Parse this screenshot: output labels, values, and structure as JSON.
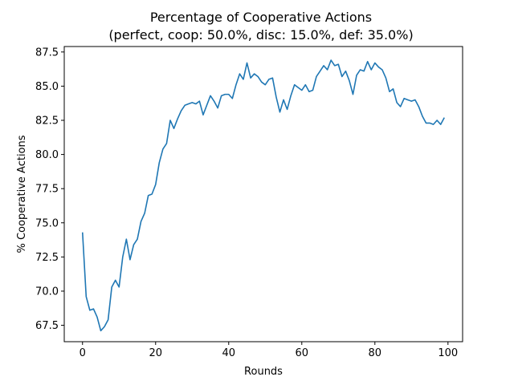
{
  "chart_data": {
    "type": "line",
    "title": "Percentage of Cooperative Actions",
    "subtitle": "(perfect, coop: 50.0%, disc: 15.0%, def: 35.0%)",
    "xlabel": "Rounds",
    "ylabel": "% Cooperative Actions",
    "xlim": [
      -5,
      104
    ],
    "ylim": [
      66.3,
      87.9
    ],
    "xticks": [
      0,
      20,
      40,
      60,
      80,
      100
    ],
    "yticks": [
      67.5,
      70.0,
      72.5,
      75.0,
      77.5,
      80.0,
      82.5,
      85.0,
      87.5
    ],
    "grid": false,
    "series": [
      {
        "color": "#1f77b4",
        "x": [
          0,
          1,
          2,
          3,
          4,
          5,
          6,
          7,
          8,
          9,
          10,
          11,
          12,
          13,
          14,
          15,
          16,
          17,
          18,
          19,
          20,
          21,
          22,
          23,
          24,
          25,
          26,
          27,
          28,
          29,
          30,
          31,
          32,
          33,
          34,
          35,
          36,
          37,
          38,
          39,
          40,
          41,
          42,
          43,
          44,
          45,
          46,
          47,
          48,
          49,
          50,
          51,
          52,
          53,
          54,
          55,
          56,
          57,
          58,
          59,
          60,
          61,
          62,
          63,
          64,
          65,
          66,
          67,
          68,
          69,
          70,
          71,
          72,
          73,
          74,
          75,
          76,
          77,
          78,
          79,
          80,
          81,
          82,
          83,
          84,
          85,
          86,
          87,
          88,
          89,
          90,
          91,
          92,
          93,
          94,
          95,
          96,
          97,
          98,
          99
        ],
        "y": [
          74.3,
          69.6,
          68.6,
          68.7,
          68.1,
          67.1,
          67.4,
          67.9,
          70.3,
          70.8,
          70.3,
          72.5,
          73.8,
          72.3,
          73.4,
          73.8,
          75.1,
          75.7,
          77.0,
          77.1,
          77.8,
          79.4,
          80.4,
          80.8,
          82.5,
          81.9,
          82.6,
          83.2,
          83.6,
          83.7,
          83.8,
          83.7,
          83.9,
          82.9,
          83.6,
          84.3,
          83.9,
          83.4,
          84.3,
          84.4,
          84.4,
          84.1,
          85.1,
          85.9,
          85.5,
          86.7,
          85.6,
          85.9,
          85.7,
          85.3,
          85.1,
          85.5,
          85.6,
          84.2,
          83.1,
          84.0,
          83.3,
          84.3,
          85.1,
          84.9,
          84.7,
          85.1,
          84.6,
          84.7,
          85.7,
          86.1,
          86.5,
          86.2,
          86.9,
          86.5,
          86.6,
          85.7,
          86.1,
          85.4,
          84.4,
          85.8,
          86.2,
          86.1,
          86.8,
          86.2,
          86.7,
          86.4,
          86.2,
          85.6,
          84.6,
          84.8,
          83.8,
          83.5,
          84.1,
          84.0,
          83.9,
          84.0,
          83.5,
          82.8,
          82.3,
          82.3,
          82.2,
          82.5,
          82.2,
          82.7
        ]
      }
    ]
  }
}
